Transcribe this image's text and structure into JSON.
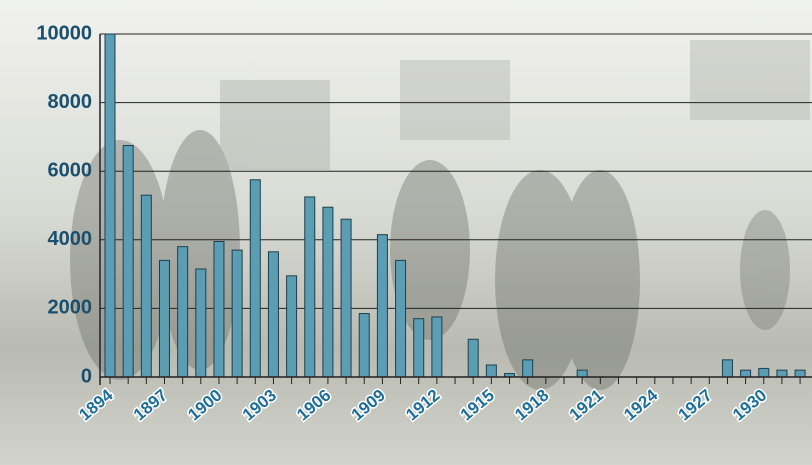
{
  "chart_data": {
    "type": "bar",
    "categories": [
      "1894",
      null,
      null,
      "1897",
      null,
      null,
      "1900",
      null,
      null,
      "1903",
      null,
      null,
      "1906",
      null,
      null,
      "1909",
      null,
      null,
      "1912",
      null,
      null,
      "1915",
      null,
      null,
      "1918",
      null,
      null,
      "1921",
      null,
      null,
      "1924",
      null,
      null,
      "1927",
      null,
      null,
      "1930",
      null,
      null
    ],
    "values": [
      10000,
      6750,
      5300,
      3400,
      3800,
      3150,
      3950,
      3700,
      5750,
      3650,
      2950,
      5250,
      4950,
      4600,
      1850,
      4150,
      3400,
      1700,
      1750,
      0,
      1100,
      350,
      100,
      500,
      0,
      0,
      200,
      0,
      0,
      0,
      0,
      0,
      0,
      0,
      500,
      200,
      250,
      200,
      200
    ],
    "color": "#5b9db3",
    "ylim": [
      0,
      10000
    ],
    "yticks": [
      0,
      2000,
      4000,
      6000,
      8000,
      10000
    ],
    "grid": true
  }
}
